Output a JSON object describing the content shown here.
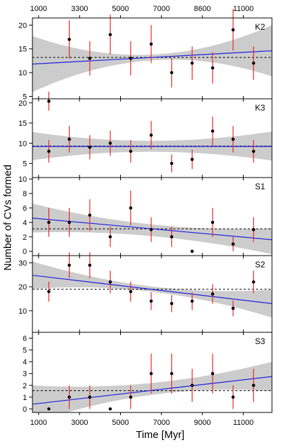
{
  "chart_data": {
    "type": "scatter",
    "xlabel": "Time [Myr]",
    "ylabel": "Number of CVs formed",
    "x_ticks": [
      1000,
      3000,
      5000,
      7000,
      9000,
      11000
    ],
    "x_tick_labels": [
      "1000",
      "3000",
      "5000",
      "7000",
      "9000",
      "11000"
    ],
    "top_x_tick_labels": [
      "1000",
      "3300",
      "5000",
      "7000",
      "8600",
      "11000"
    ],
    "xlim": [
      700,
      12400
    ],
    "x": [
      1500,
      2500,
      3500,
      4500,
      5500,
      6500,
      7500,
      8500,
      9500,
      10500,
      11500
    ],
    "colors": {
      "points": "#000000",
      "error_bars": "#e8282a",
      "fit_line": "#1f1fe0",
      "confidence_band": "#cccccc",
      "mean_line": "#000000"
    },
    "panels": [
      {
        "label": "K2",
        "ylim": [
          4.5,
          21.5
        ],
        "yticks": [
          5,
          10,
          15,
          20
        ],
        "ytick_labels": [
          "5",
          "10",
          "15",
          "20"
        ],
        "values": [
          4,
          17,
          13,
          18,
          13,
          16,
          10,
          12,
          11,
          19,
          12
        ],
        "err_low": [
          2,
          4,
          3.6,
          4.2,
          3.6,
          4,
          3.1,
          3.5,
          3.3,
          4.4,
          3.5
        ],
        "err_high": [
          2,
          4,
          3.6,
          4.2,
          3.6,
          4,
          3.1,
          3.5,
          3.3,
          4.4,
          3.5
        ],
        "mean": 13.2,
        "fit": [
          11.8,
          14.6
        ],
        "band": [
          [
            17.7,
            5.9
          ],
          [
            13.8,
            12.6
          ],
          [
            20.0,
            9.2
          ]
        ]
      },
      {
        "label": "K3",
        "ylim": [
          1.5,
          21
        ],
        "yticks": [
          5,
          10,
          15,
          20
        ],
        "ytick_labels": [
          "5",
          "10",
          "15",
          "20"
        ],
        "values": [
          8,
          11,
          9,
          10,
          8,
          12,
          5,
          6,
          13,
          11,
          8
        ],
        "err_low": [
          2.8,
          3.3,
          3,
          3.1,
          2.8,
          3.5,
          2.2,
          2.4,
          3.6,
          3.3,
          2.8
        ],
        "err_high": [
          2.8,
          3.3,
          3,
          3.1,
          2.8,
          3.5,
          2.2,
          2.4,
          3.6,
          3.3,
          2.8
        ],
        "mean": 9.3,
        "fit": [
          9.2,
          9.2
        ],
        "band": [
          [
            12.8,
            5.8
          ],
          [
            10.6,
            7.9
          ],
          [
            12.9,
            5.7
          ]
        ]
      },
      {
        "label": "S1",
        "ylim": [
          -0.6,
          10.2
        ],
        "yticks": [
          0,
          2,
          4,
          6,
          8,
          10
        ],
        "ytick_labels": [
          "0",
          "2",
          "4",
          "6",
          "8",
          "10"
        ],
        "values": [
          4,
          4,
          5,
          2,
          6,
          3,
          2,
          0,
          4,
          1,
          3
        ],
        "err_low": [
          2,
          2,
          2.2,
          1.4,
          2.4,
          1.7,
          1.4,
          0,
          2,
          1,
          1.7
        ],
        "err_high": [
          2,
          2,
          2.2,
          1.4,
          2.4,
          1.7,
          1.4,
          0,
          2,
          1,
          1.7
        ],
        "mean": 3.1,
        "fit": [
          4.6,
          1.6
        ],
        "band": [
          [
            6.6,
            2.6
          ],
          [
            3.7,
            2.1
          ],
          [
            3.2,
            -0.4
          ]
        ]
      },
      {
        "label": "S2",
        "ylim": [
          1,
          33
        ],
        "yticks": [
          10,
          20,
          30
        ],
        "ytick_labels": [
          "10",
          "20",
          "30"
        ],
        "values": [
          18,
          29,
          29,
          22,
          18,
          14,
          13,
          14,
          17,
          11,
          22
        ],
        "err_low": [
          4.2,
          5.4,
          5.4,
          4.7,
          4.2,
          3.7,
          3.6,
          3.7,
          4.1,
          3.3,
          4.7
        ],
        "err_high": [
          4.2,
          5.4,
          5.4,
          4.7,
          4.2,
          3.7,
          3.6,
          3.7,
          4.1,
          3.3,
          4.7
        ],
        "mean": 19,
        "fit": [
          24.8,
          13
        ],
        "band": [
          [
            30.6,
            19.1
          ],
          [
            20.1,
            17.9
          ],
          [
            18.8,
            7.1
          ]
        ]
      },
      {
        "label": "S3",
        "ylim": [
          -0.3,
          6.5
        ],
        "yticks": [
          0,
          1,
          2,
          3,
          4,
          5,
          6
        ],
        "ytick_labels": [
          "0",
          "1",
          "2",
          "3",
          "4",
          "5",
          "6"
        ],
        "values": [
          0,
          1,
          1,
          0,
          1,
          3,
          3,
          2,
          3,
          1,
          2
        ],
        "err_low": [
          0,
          1,
          1,
          0,
          1,
          1.7,
          1.7,
          1.4,
          1.7,
          1,
          1.4
        ],
        "err_high": [
          0,
          1,
          1,
          0,
          1,
          1.7,
          1.7,
          1.4,
          1.7,
          1,
          1.4
        ],
        "mean": 1.55,
        "fit": [
          0.4,
          2.75
        ],
        "band": [
          [
            2,
            -1.2
          ],
          [
            2.2,
            1.2
          ],
          [
            4,
            1.5
          ]
        ]
      }
    ]
  }
}
